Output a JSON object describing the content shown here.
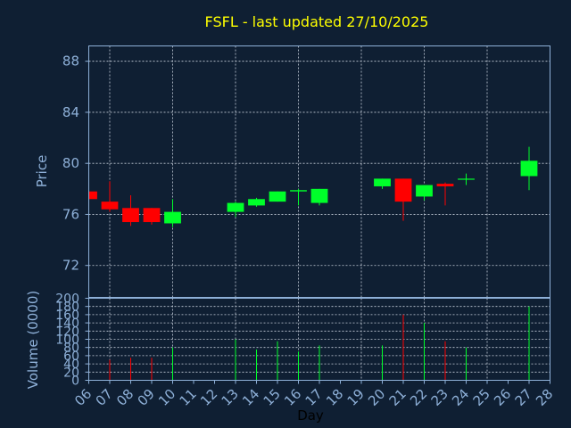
{
  "chart_data": {
    "type": "candlestick",
    "title": "FSFL - last updated 27/10/2025",
    "xlabel": "Day",
    "price_ylabel": "Price",
    "volume_ylabel": "Volume (0000)",
    "price_ylim": [
      69.5,
      89.2
    ],
    "price_ticks": [
      72,
      76,
      80,
      84,
      88
    ],
    "volume_ylim": [
      0,
      200
    ],
    "volume_ticks": [
      0,
      20,
      40,
      60,
      80,
      100,
      120,
      140,
      160,
      180,
      200
    ],
    "x_ticks": [
      "06",
      "07",
      "08",
      "09",
      "10",
      "11",
      "12",
      "13",
      "14",
      "15",
      "16",
      "17",
      "18",
      "19",
      "20",
      "21",
      "22",
      "23",
      "24",
      "25",
      "26",
      "27",
      "28"
    ],
    "grid": true,
    "colors": {
      "background": "#0f1f33",
      "up": "#00ff2a",
      "down": "#ff0000",
      "frame": "#8eb0d8",
      "title": "#ffff00"
    },
    "candles": [
      {
        "day": "06",
        "open": 77.8,
        "high": 77.8,
        "low": 77.0,
        "close": 77.2,
        "volume": 0
      },
      {
        "day": "07",
        "open": 77.0,
        "high": 78.6,
        "low": 76.2,
        "close": 76.4,
        "volume": 50
      },
      {
        "day": "08",
        "open": 76.5,
        "high": 77.5,
        "low": 75.1,
        "close": 75.4,
        "volume": 55
      },
      {
        "day": "09",
        "open": 76.5,
        "high": 76.5,
        "low": 75.2,
        "close": 75.4,
        "volume": 55
      },
      {
        "day": "10",
        "open": 75.3,
        "high": 77.2,
        "low": 75.0,
        "close": 76.2,
        "volume": 80
      },
      {
        "day": "13",
        "open": 76.2,
        "high": 77.0,
        "low": 75.8,
        "close": 76.9,
        "volume": 100
      },
      {
        "day": "14",
        "open": 76.7,
        "high": 77.3,
        "low": 76.6,
        "close": 77.2,
        "volume": 75
      },
      {
        "day": "15",
        "open": 77.0,
        "high": 77.8,
        "low": 77.0,
        "close": 77.8,
        "volume": 95
      },
      {
        "day": "16",
        "open": 77.8,
        "high": 78.0,
        "low": 76.7,
        "close": 77.9,
        "volume": 70
      },
      {
        "day": "17",
        "open": 76.9,
        "high": 78.0,
        "low": 76.7,
        "close": 78.0,
        "volume": 85
      },
      {
        "day": "20",
        "open": 78.2,
        "high": 78.8,
        "low": 78.0,
        "close": 78.8,
        "volume": 85
      },
      {
        "day": "21",
        "open": 78.8,
        "high": 78.8,
        "low": 75.5,
        "close": 77.0,
        "volume": 160
      },
      {
        "day": "22",
        "open": 77.4,
        "high": 78.3,
        "low": 77.1,
        "close": 78.3,
        "volume": 140
      },
      {
        "day": "23",
        "open": 78.4,
        "high": 78.5,
        "low": 76.7,
        "close": 78.2,
        "volume": 95
      },
      {
        "day": "24",
        "open": 78.8,
        "high": 79.2,
        "low": 78.3,
        "close": 78.8,
        "volume": 80
      },
      {
        "day": "27",
        "open": 79.0,
        "high": 81.3,
        "low": 77.9,
        "close": 80.2,
        "volume": 180
      }
    ]
  }
}
